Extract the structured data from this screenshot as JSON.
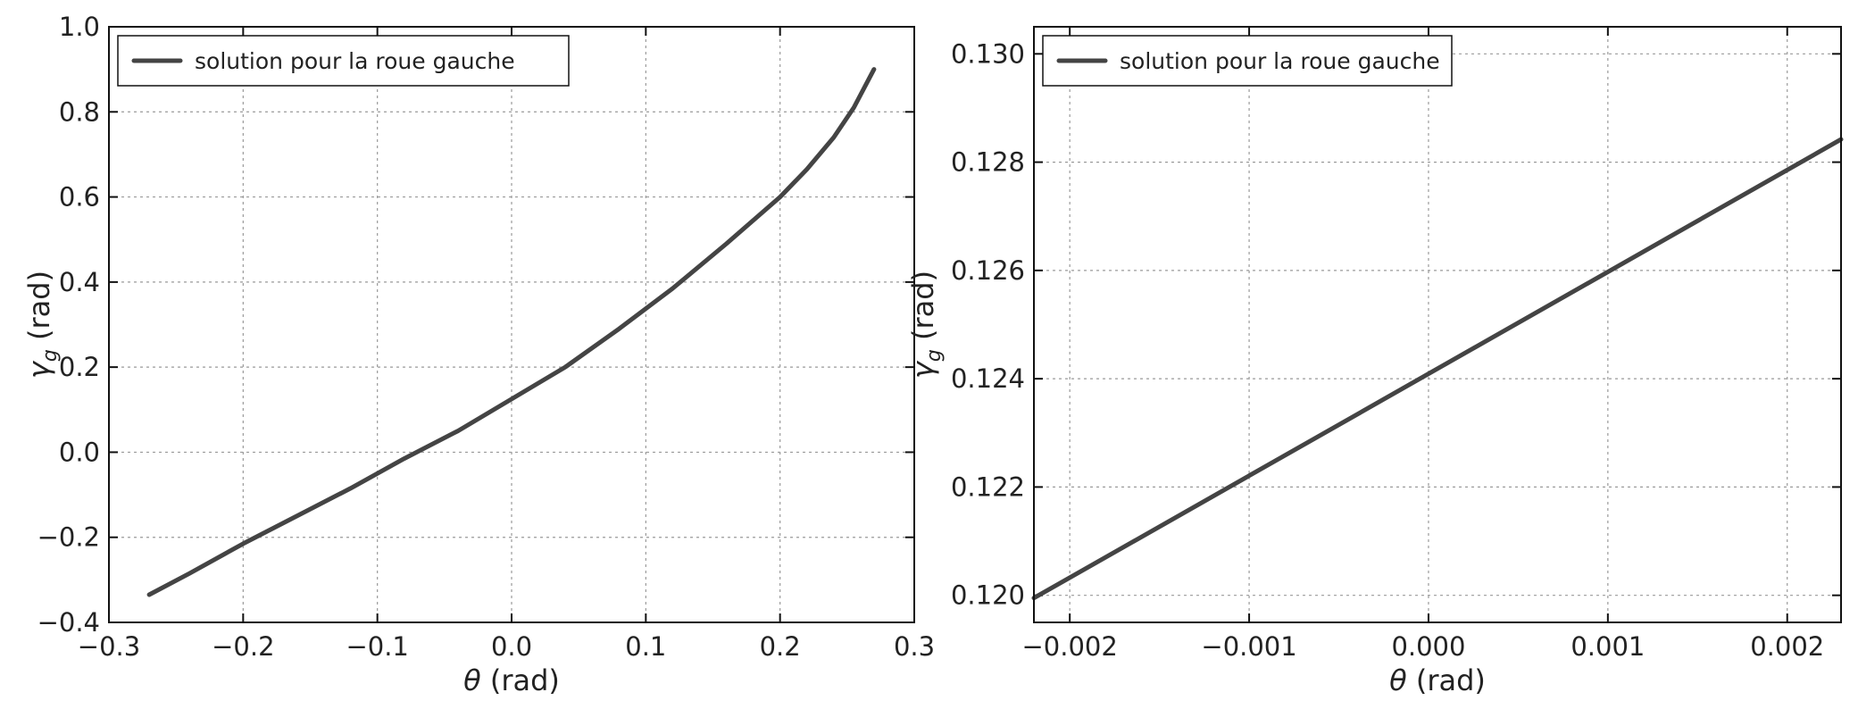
{
  "chart_data": [
    {
      "type": "line",
      "title": "",
      "xlabel": "θ (rad)",
      "ylabel": "γg (rad)",
      "xlim": [
        -0.3,
        0.3
      ],
      "ylim": [
        -0.4,
        1.0
      ],
      "xticks": [
        -0.3,
        -0.2,
        -0.1,
        0.0,
        0.1,
        0.2,
        0.3
      ],
      "xtick_labels": [
        "−0.3",
        "−0.2",
        "−0.1",
        "0.0",
        "0.1",
        "0.2",
        "0.3"
      ],
      "yticks": [
        -0.4,
        -0.2,
        0.0,
        0.2,
        0.4,
        0.6,
        0.8,
        1.0
      ],
      "ytick_labels": [
        "−0.4",
        "−0.2",
        "0.0",
        "0.2",
        "0.4",
        "0.6",
        "0.8",
        "1.0"
      ],
      "grid": true,
      "legend": "top-left",
      "series": [
        {
          "name": "solution pour la roue gauche",
          "color": "#444444",
          "x": [
            -0.27,
            -0.24,
            -0.2,
            -0.16,
            -0.12,
            -0.08,
            -0.04,
            0.0,
            0.04,
            0.08,
            0.12,
            0.16,
            0.2,
            0.22,
            0.24,
            0.255,
            0.27
          ],
          "y": [
            -0.335,
            -0.285,
            -0.215,
            -0.15,
            -0.085,
            -0.015,
            0.05,
            0.125,
            0.2,
            0.29,
            0.385,
            0.49,
            0.6,
            0.665,
            0.74,
            0.81,
            0.9
          ]
        }
      ]
    },
    {
      "type": "line",
      "title": "",
      "xlabel": "θ (rad)",
      "ylabel": "γg (rad)",
      "xlim": [
        -0.0022,
        0.0023
      ],
      "ylim": [
        0.1195,
        0.1305
      ],
      "xticks": [
        -0.002,
        -0.001,
        0.0,
        0.001,
        0.002
      ],
      "xtick_labels": [
        "−0.002",
        "−0.001",
        "0.000",
        "0.001",
        "0.002"
      ],
      "yticks": [
        0.12,
        0.122,
        0.124,
        0.126,
        0.128,
        0.13
      ],
      "ytick_labels": [
        "0.120",
        "0.122",
        "0.124",
        "0.126",
        "0.128",
        "0.130"
      ],
      "grid": true,
      "legend": "top-left",
      "series": [
        {
          "name": "solution pour la roue gauche",
          "color": "#444444",
          "x": [
            -0.0022,
            0.0023
          ],
          "y": [
            0.11995,
            0.12842
          ]
        }
      ]
    }
  ]
}
